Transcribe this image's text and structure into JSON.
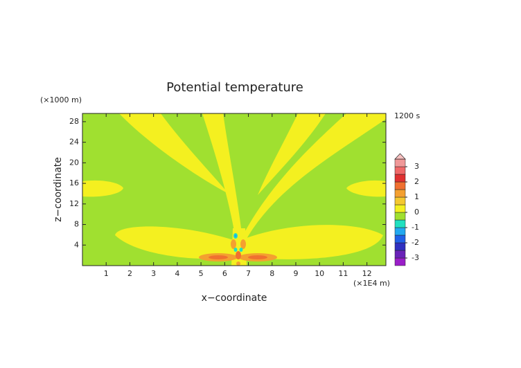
{
  "chart_data": {
    "type": "contour",
    "title": "Potential temperature",
    "xlabel": "x−coordinate",
    "ylabel": "z−coordinate",
    "x_unit": "(×1E4 m)",
    "y_unit": "(×1000 m)",
    "time_label": "1200 s",
    "xlim": [
      0,
      12.8
    ],
    "xticks": [
      1,
      2,
      3,
      4,
      5,
      6,
      7,
      8,
      9,
      10,
      11,
      12
    ],
    "ylim": [
      0,
      29.6
    ],
    "yticks": [
      4,
      8,
      12,
      16,
      20,
      24,
      28
    ],
    "levels": [
      -3.5,
      -3,
      -2.5,
      -2,
      -1.5,
      -1,
      -0.5,
      0,
      0.5,
      1,
      1.5,
      2,
      2.5,
      3,
      3.5
    ],
    "colors": [
      "#9a1ec8",
      "#6a22b8",
      "#3030c0",
      "#2060e8",
      "#22a8f0",
      "#20e0c0",
      "#a0e030",
      "#f4f020",
      "#f4c830",
      "#f4a030",
      "#f07030",
      "#e03030",
      "#f06868",
      "#f09898",
      "#f8c0c0"
    ],
    "colorbar_ticks": [
      -3,
      -2,
      -1,
      0,
      1,
      2,
      3
    ]
  }
}
